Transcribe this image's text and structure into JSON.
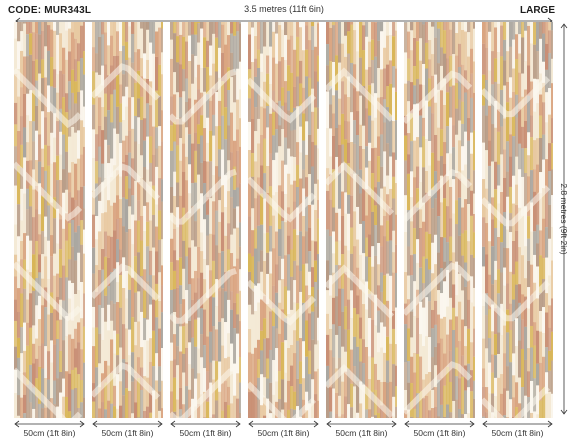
{
  "product": {
    "code": "CODE: MUR343L",
    "size": "LARGE",
    "total_width": "3.5 metres (11ft 6in)",
    "total_height": "2.8 metres (9ft 2in)"
  },
  "panels": [
    {
      "label": "50cm (1ft 8in)"
    },
    {
      "label": "50cm (1ft 8in)"
    },
    {
      "label": "50cm (1ft 8in)"
    },
    {
      "label": "50cm (1ft 8in)"
    },
    {
      "label": "50cm (1ft 8in)"
    },
    {
      "label": "50cm (1ft 8in)"
    },
    {
      "label": "50cm (1ft 8in)"
    }
  ],
  "palette": {
    "cream": "#f4ead6",
    "beige": "#e8c9a1",
    "peach": "#d9a37f",
    "terracotta": "#c88e74",
    "mustard": "#d8b557",
    "grey": "#a9a6a0",
    "taupe": "#b69a85",
    "white": "#fbf7ef"
  }
}
